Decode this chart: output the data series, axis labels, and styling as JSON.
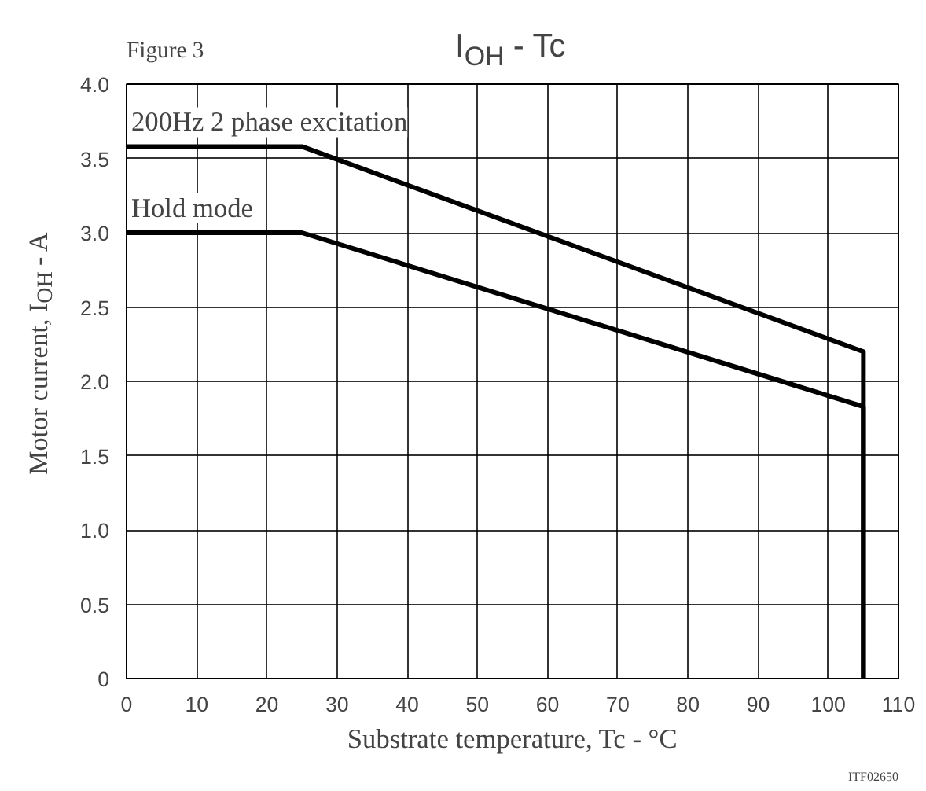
{
  "chart_data": {
    "type": "line",
    "title": "I$_{OH}$ - Tc",
    "xlabel": "Substrate temperature, Tc - °C",
    "ylabel": "Motor current, I$_{OH}$ - A",
    "annotations": [
      "Figure 3",
      "ITF02650"
    ],
    "series": [
      {
        "name": "200Hz 2 phase excitation",
        "color": "#000000",
        "x": [
          0,
          25,
          105,
          105
        ],
        "values": [
          3.58,
          3.58,
          2.2,
          0
        ]
      },
      {
        "name": "Hold mode",
        "color": "#000000",
        "x": [
          0,
          25,
          105,
          105
        ],
        "values": [
          3.0,
          3.0,
          1.83,
          0
        ]
      }
    ],
    "xlim": [
      0,
      110
    ],
    "xticks": [
      0,
      10,
      20,
      30,
      40,
      50,
      60,
      70,
      80,
      90,
      100,
      110
    ],
    "ylim": [
      0,
      4.0
    ],
    "yticks": [
      0,
      {
        "value": 0.5,
        "label": "0.5"
      },
      {
        "value": 1,
        "label": "1.0"
      },
      {
        "value": 1.5,
        "label": "1.5"
      },
      {
        "value": 2,
        "label": "2.0"
      },
      {
        "value": 2.5,
        "label": "2.5"
      },
      {
        "value": 3,
        "label": "3.0"
      },
      {
        "value": 3.5,
        "label": "3.5"
      },
      {
        "value": 4,
        "label": "4.0"
      }
    ],
    "grid": true,
    "marker": "none",
    "line_style": "solid"
  }
}
